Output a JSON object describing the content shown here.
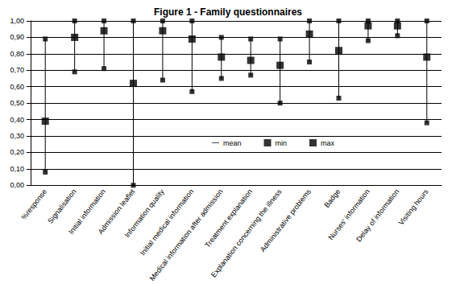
{
  "chart_data": {
    "type": "range",
    "title": "Figure 1 - Family questionnaires",
    "categories": [
      "%response",
      "Signalisation",
      "Initial information",
      "Admission leaflet",
      "Information quality",
      "Initial medical information",
      "Medical information after admission",
      "Treatment explanation",
      "Explanation concerning the illness",
      "Administrative problems",
      "Badge",
      "Nurses' information",
      "Delay of information",
      "Visiting hours"
    ],
    "series": [
      {
        "name": "mean",
        "color": "#000000",
        "marker": "dash",
        "values": [
          0.39,
          0.9,
          0.94,
          0.62,
          0.94,
          0.89,
          0.78,
          0.76,
          0.73,
          0.92,
          0.82,
          0.97,
          0.97,
          0.78
        ]
      },
      {
        "name": "min",
        "color": "#000000",
        "marker": "square",
        "values": [
          0.08,
          0.69,
          0.71,
          0.0,
          0.64,
          0.57,
          0.65,
          0.67,
          0.5,
          0.75,
          0.53,
          0.88,
          0.91,
          0.38
        ]
      },
      {
        "name": "max",
        "color": "#000000",
        "marker": "square",
        "values": [
          0.89,
          1.0,
          1.0,
          1.0,
          1.0,
          1.0,
          0.9,
          0.89,
          0.89,
          1.0,
          1.0,
          1.0,
          1.0,
          1.0
        ]
      }
    ],
    "ylim": [
      0,
      1
    ],
    "yticks": [
      {
        "value": 0,
        "label": "0,00"
      },
      {
        "value": 0.1,
        "label": "0,10"
      },
      {
        "value": 0.2,
        "label": "0,20"
      },
      {
        "value": 0.3,
        "label": "0,30"
      },
      {
        "value": 0.4,
        "label": "0,40"
      },
      {
        "value": 0.5,
        "label": "0,50"
      },
      {
        "value": 0.6,
        "label": "0,60"
      },
      {
        "value": 0.7,
        "label": "0,70"
      },
      {
        "value": 0.8,
        "label": "0,80"
      },
      {
        "value": 0.9,
        "label": "0,90"
      },
      {
        "value": 1,
        "label": "1,00"
      }
    ],
    "grid": true,
    "legend": "center"
  }
}
